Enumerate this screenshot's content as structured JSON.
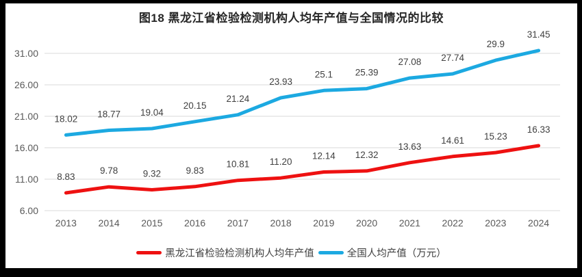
{
  "title": "图18 黑龙江省检验检测机构人均年产值与全国情况的比较",
  "chart_data": {
    "type": "line",
    "categories": [
      "2013",
      "2014",
      "2015",
      "2016",
      "2017",
      "2018",
      "2019",
      "2020",
      "2021",
      "2022",
      "2023",
      "2024"
    ],
    "series": [
      {
        "name": "黑龙江省检验检测机构人均年产值",
        "color": "#ee1111",
        "values": [
          8.83,
          9.78,
          9.32,
          9.83,
          10.81,
          11.2,
          12.14,
          12.32,
          13.63,
          14.61,
          15.23,
          16.33
        ],
        "labels": [
          "8.83",
          "9.78",
          "9.32",
          "9.83",
          "10.81",
          "11.20",
          "12.14",
          "12.32",
          "13.63",
          "14.61",
          "15.23",
          "16.33"
        ]
      },
      {
        "name": "全国人均产值（万元）",
        "color": "#1ca9e1",
        "values": [
          18.02,
          18.77,
          19.04,
          20.15,
          21.24,
          23.93,
          25.1,
          25.39,
          27.08,
          27.74,
          29.9,
          31.45
        ],
        "labels": [
          "18.02",
          "18.77",
          "19.04",
          "20.15",
          "21.24",
          "23.93",
          "25.1",
          "25.39",
          "27.08",
          "27.74",
          "29.9",
          "31.45"
        ]
      }
    ],
    "ylim": [
      6,
      31
    ],
    "ytick_labels": [
      "6.00",
      "11.00",
      "16.00",
      "21.00",
      "26.00",
      "31.00"
    ],
    "grid": true,
    "gridline_color": "#d9d9d9",
    "tick_label_color": "#595959",
    "data_label_color": "#404040",
    "legend_position": "bottom"
  }
}
